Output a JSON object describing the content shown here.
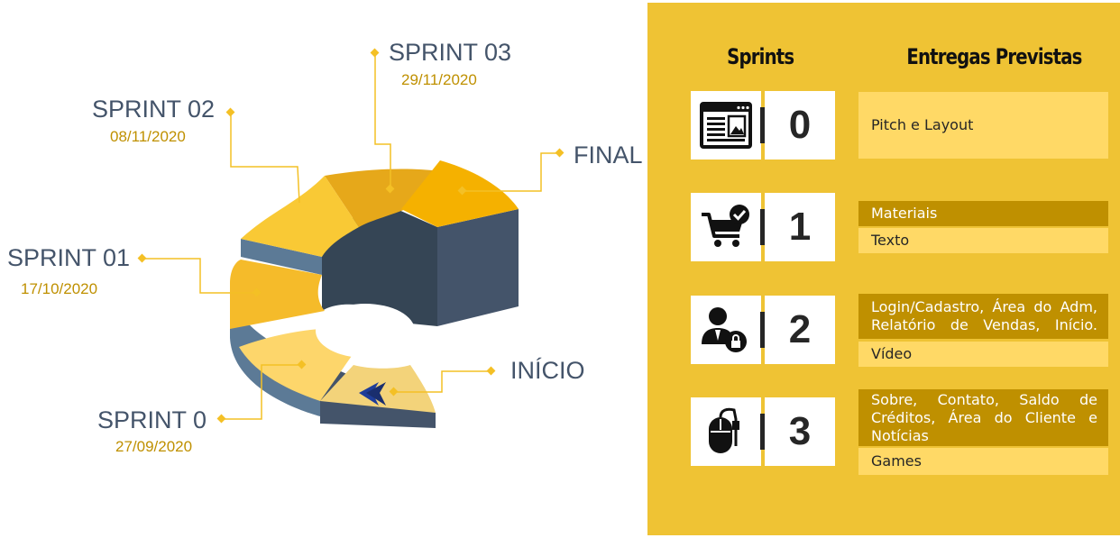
{
  "diagram": {
    "sprints": [
      {
        "name": "SPRINT 0",
        "date": "27/09/2020"
      },
      {
        "name": "SPRINT 01",
        "date": "17/10/2020"
      },
      {
        "name": "SPRINT 02",
        "date": "08/11/2020"
      },
      {
        "name": "SPRINT 03",
        "date": "29/11/2020"
      }
    ],
    "start_label": "INÍCIO",
    "end_label": "FINAL",
    "colors": {
      "accent": "#f4c025",
      "navy": "#44546a",
      "date": "#bf9000",
      "inner": "#354555"
    }
  },
  "panel": {
    "headers": {
      "sprints": "Sprints",
      "deliveries": "Entregas Previstas"
    },
    "rows": [
      {
        "number": "0",
        "icon": "webpage-icon",
        "deliveries": [
          "Pitch e Layout"
        ]
      },
      {
        "number": "1",
        "icon": "shopping-cart-check-icon",
        "deliveries": [
          "Materiais",
          "Texto"
        ]
      },
      {
        "number": "2",
        "icon": "user-lock-icon",
        "deliveries": [
          "Login/Cadastro, Área do Adm, Relatório de Vendas, Início.",
          "Vídeo"
        ]
      },
      {
        "number": "3",
        "icon": "mouse-icon",
        "deliveries": [
          "Sobre, Contato, Saldo de Créditos, Área do Cliente e Notícias",
          "Games"
        ]
      }
    ],
    "colors": {
      "background": "#efc334",
      "light_row": "#ffd966",
      "dark_row": "#bf9000"
    }
  }
}
